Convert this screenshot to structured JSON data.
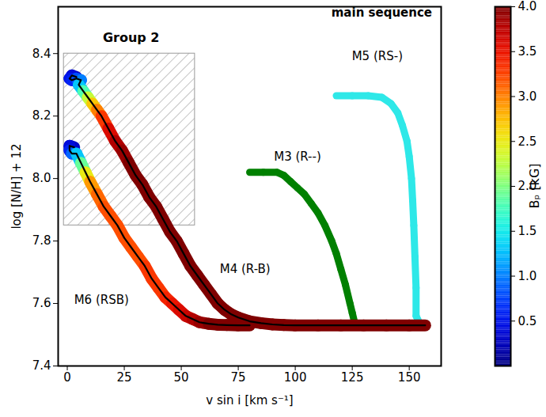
{
  "chart_data": {
    "type": "line",
    "x_label": "v sin i [km s⁻¹]",
    "y_label": "log [N/H] + 12",
    "xlim": [
      -4,
      164
    ],
    "ylim": [
      7.4,
      8.55
    ],
    "xticks": [
      0,
      25,
      50,
      75,
      100,
      125,
      150
    ],
    "yticks": [
      7.4,
      7.6,
      7.8,
      {
        "value": 8,
        "label": "8.0"
      },
      8.2,
      8.4
    ],
    "colorbar": {
      "label": "Bₚ [kG]",
      "range": [
        0,
        4
      ],
      "ticks": [
        0.5,
        {
          "value": 1,
          "label": "1.0"
        },
        1.5,
        {
          "value": 2,
          "label": "2.0"
        },
        2.5,
        {
          "value": 3,
          "label": "3.0"
        },
        3.5,
        {
          "value": 4,
          "label": "4.0"
        }
      ]
    },
    "region": {
      "label": "Group 2",
      "x": [
        -1.5,
        56
      ],
      "y": [
        7.85,
        8.4
      ],
      "label_x": 28,
      "label_y": 8.45
    },
    "annotations": [
      {
        "text": "main sequence",
        "x": 160,
        "y": 8.53
      },
      {
        "text": "M5 (RS-)",
        "x": 136,
        "y": 8.39
      },
      {
        "text": "M3 (R--)",
        "x": 101,
        "y": 8.07
      },
      {
        "text": "M4 (R-B)",
        "x": 78,
        "y": 7.71
      },
      {
        "text": "M6 (RSB)",
        "x": 15,
        "y": 7.61
      }
    ],
    "series": [
      {
        "name": "M3 (R--)",
        "color": "#008000",
        "x": [
          80,
          86,
          92,
          95,
          98,
          101,
          104,
          107,
          110,
          113,
          116,
          118,
          120,
          122,
          124,
          125,
          126,
          127,
          130,
          135
        ],
        "values": [
          8.02,
          8.02,
          8.02,
          8.01,
          7.99,
          7.97,
          7.95,
          7.92,
          7.89,
          7.85,
          7.8,
          7.76,
          7.71,
          7.66,
          7.6,
          7.57,
          7.54,
          7.53,
          7.53,
          7.53
        ]
      },
      {
        "name": "M5 (RS-)",
        "color": "#2ee8e8",
        "x": [
          118,
          125,
          132,
          138,
          142,
          145,
          147,
          149,
          150,
          151,
          151.5,
          152,
          152.5,
          153,
          153,
          155
        ],
        "values": [
          8.265,
          8.265,
          8.265,
          8.26,
          8.24,
          8.21,
          8.17,
          8.12,
          8.07,
          8.0,
          7.93,
          7.85,
          7.75,
          7.65,
          7.56,
          7.53
        ]
      },
      {
        "name": "M6 (RSB)",
        "color": "#000000",
        "line_style": "solid",
        "x": [
          3,
          1,
          1,
          2,
          4,
          6,
          8,
          10,
          13,
          16,
          19,
          22,
          25,
          28,
          31,
          34,
          37,
          40,
          43,
          46,
          49,
          52,
          55,
          58,
          62,
          66,
          70,
          75,
          80
        ],
        "values": [
          8.1,
          8.105,
          8.09,
          8.08,
          8.08,
          8.05,
          8.02,
          7.99,
          7.95,
          7.91,
          7.88,
          7.85,
          7.81,
          7.78,
          7.75,
          7.72,
          7.68,
          7.65,
          7.62,
          7.6,
          7.58,
          7.56,
          7.55,
          7.54,
          7.535,
          7.532,
          7.531,
          7.53,
          7.53
        ],
        "bp": [
          0.3,
          0.4,
          0.6,
          0.9,
          1.3,
          1.9,
          2.5,
          2.9,
          3.1,
          3.2,
          3.2,
          3.2,
          3.2,
          3.2,
          3.2,
          3.3,
          3.3,
          3.3,
          3.4,
          3.5,
          3.6,
          3.7,
          3.8,
          3.9,
          4,
          4,
          4,
          4,
          4
        ]
      },
      {
        "name": "M4 (R-B)",
        "color": "#000000",
        "line_style": "solid",
        "x": [
          4,
          2,
          1,
          2,
          4,
          6,
          5,
          7,
          9,
          11,
          13,
          15,
          18,
          21,
          24,
          27,
          30,
          33,
          36,
          39,
          42,
          45,
          48,
          51,
          54,
          57,
          60,
          63,
          66,
          69,
          72,
          75,
          80,
          85,
          90,
          95,
          100,
          110,
          120,
          130,
          140,
          150,
          157
        ],
        "values": [
          8.325,
          8.33,
          8.32,
          8.315,
          8.32,
          8.315,
          8.3,
          8.28,
          8.26,
          8.24,
          8.22,
          8.2,
          8.16,
          8.12,
          8.09,
          8.05,
          8.01,
          7.98,
          7.94,
          7.91,
          7.87,
          7.83,
          7.8,
          7.76,
          7.72,
          7.69,
          7.66,
          7.63,
          7.6,
          7.58,
          7.565,
          7.555,
          7.543,
          7.537,
          7.533,
          7.531,
          7.53,
          7.53,
          7.53,
          7.53,
          7.53,
          7.53,
          7.53
        ],
        "bp": [
          0.3,
          0.4,
          0.5,
          0.6,
          0.8,
          1.0,
          1.3,
          1.8,
          2.3,
          2.7,
          3.0,
          3.3,
          3.6,
          3.8,
          3.9,
          4,
          4,
          4,
          4,
          4,
          4,
          4,
          4,
          4,
          4,
          4,
          4,
          4,
          4,
          4,
          4,
          4,
          4,
          4,
          4,
          4,
          4,
          4,
          4,
          4,
          4,
          4,
          4
        ]
      }
    ]
  }
}
